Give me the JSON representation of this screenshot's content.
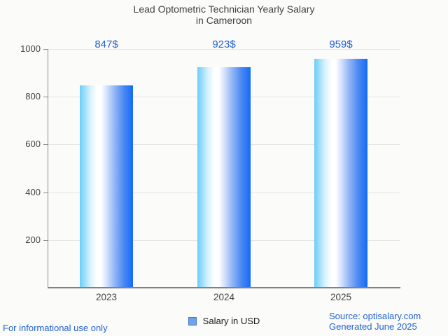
{
  "title": {
    "line1": "Lead Optometric Technician Yearly Salary",
    "line2": "in Cameroon"
  },
  "chart_data": {
    "type": "bar",
    "categories": [
      "2023",
      "2024",
      "2025"
    ],
    "series": [
      {
        "name": "Salary in USD",
        "values": [
          847,
          923,
          959
        ]
      }
    ],
    "value_labels": [
      "847$",
      "923$",
      "959$"
    ],
    "title": "Lead Optometric Technician Yearly Salary in Cameroon",
    "xlabel": "",
    "ylabel": "",
    "ylim": [
      0,
      1000
    ],
    "yticks": [
      200,
      400,
      600,
      800,
      1000
    ],
    "grid": "on",
    "legend_position": "bottom-center"
  },
  "legend": {
    "label": "Salary in USD"
  },
  "footer": {
    "left": "For informational use only",
    "source": "Source: optisalary.com",
    "generated": "Generated June 2025"
  },
  "colors": {
    "accent_blue": "#2261d6",
    "bar_gradient_left": "#6ccdf8",
    "bar_gradient_right": "#146bf7",
    "legend_fill": "#6fa2ee",
    "legend_border": "#4879c2",
    "gridline": "#e4e4e2",
    "axis": "#8b8b8b",
    "title_text": "#3f3f3f",
    "background": "#fbfbf9"
  }
}
